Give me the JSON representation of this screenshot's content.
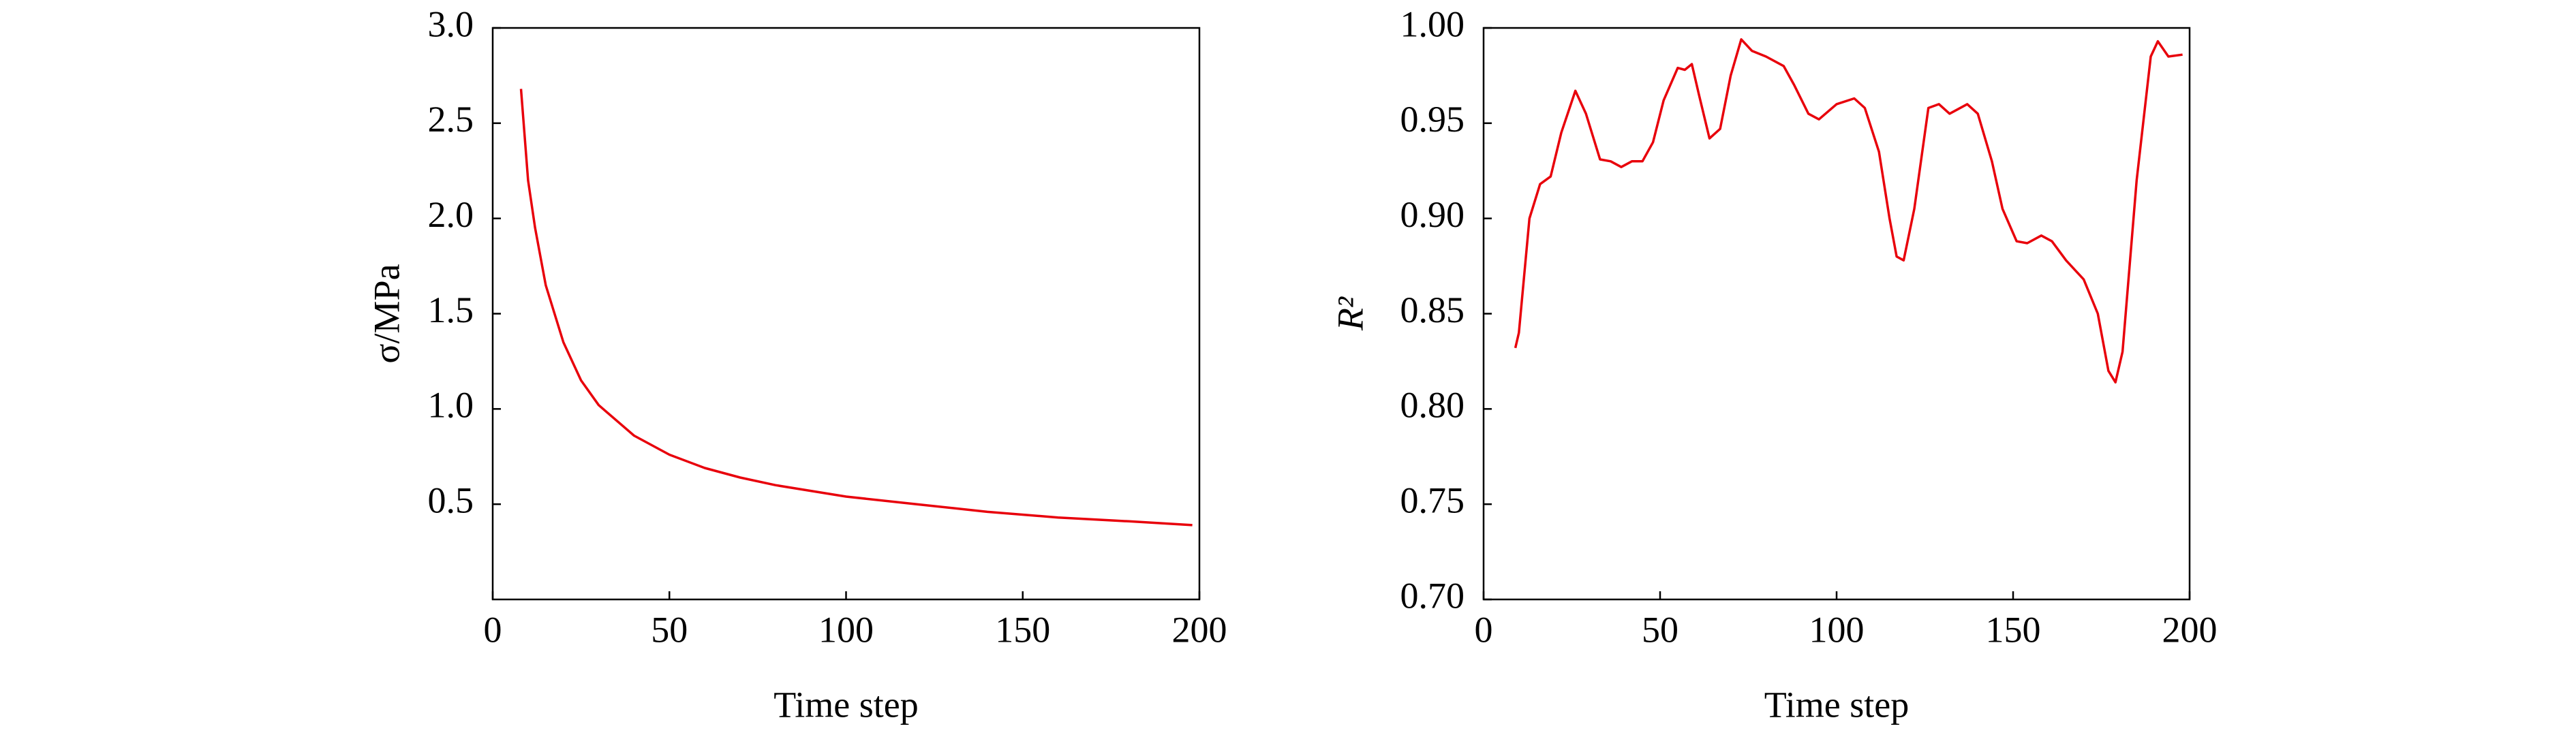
{
  "chart_data": [
    {
      "type": "line",
      "xlabel": "Time step",
      "ylabel": "σ/MPa",
      "xlim": [
        0,
        200
      ],
      "xticks": [
        0,
        50,
        100,
        150,
        200
      ],
      "ylim": [
        0,
        3
      ],
      "yticks": [
        0.5,
        {
          "value": 1,
          "label": "1.0"
        },
        1.5,
        {
          "value": 2,
          "label": "2.0"
        },
        2.5,
        {
          "value": 3,
          "label": "3.0"
        }
      ],
      "series": [
        {
          "color": "#e8000b",
          "x": [
            8,
            10,
            12,
            15,
            20,
            25,
            30,
            40,
            50,
            60,
            70,
            80,
            90,
            100,
            120,
            140,
            160,
            180,
            198
          ],
          "values": [
            2.68,
            2.2,
            1.95,
            1.65,
            1.35,
            1.15,
            1.02,
            0.86,
            0.76,
            0.69,
            0.64,
            0.6,
            0.57,
            0.54,
            0.5,
            0.46,
            0.43,
            0.41,
            0.39
          ]
        }
      ]
    },
    {
      "type": "line",
      "xlabel": "Time step",
      "ylabel": "R²",
      "xlim": [
        0,
        200
      ],
      "xticks": [
        0,
        50,
        100,
        150,
        200
      ],
      "ylim": [
        0.7,
        1
      ],
      "yticks": [
        {
          "value": 0.7,
          "label": "0.70"
        },
        0.75,
        {
          "value": 0.8,
          "label": "0.80"
        },
        0.85,
        {
          "value": 0.9,
          "label": "0.90"
        },
        0.95,
        {
          "value": 1,
          "label": "1.00"
        }
      ],
      "series": [
        {
          "color": "#e8000b",
          "x": [
            9,
            10,
            13,
            16,
            19,
            22,
            26,
            29,
            33,
            36,
            39,
            42,
            45,
            48,
            51,
            55,
            57,
            59,
            61,
            64,
            67,
            70,
            73,
            76,
            80,
            85,
            88,
            92,
            95,
            100,
            105,
            108,
            112,
            115,
            117,
            119,
            122,
            126,
            129,
            132,
            137,
            140,
            144,
            147,
            151,
            154,
            158,
            161,
            165,
            170,
            174,
            177,
            179,
            181,
            185,
            189,
            191,
            194,
            198
          ],
          "values": [
            0.832,
            0.84,
            0.9,
            0.918,
            0.922,
            0.945,
            0.967,
            0.955,
            0.931,
            0.93,
            0.927,
            0.93,
            0.93,
            0.94,
            0.962,
            0.979,
            0.978,
            0.981,
            0.965,
            0.942,
            0.947,
            0.975,
            0.994,
            0.988,
            0.985,
            0.98,
            0.97,
            0.955,
            0.952,
            0.96,
            0.963,
            0.958,
            0.935,
            0.9,
            0.88,
            0.878,
            0.905,
            0.958,
            0.96,
            0.955,
            0.96,
            0.955,
            0.93,
            0.905,
            0.888,
            0.887,
            0.891,
            0.888,
            0.878,
            0.868,
            0.85,
            0.82,
            0.814,
            0.83,
            0.92,
            0.985,
            0.993,
            0.985,
            0.986
          ]
        }
      ]
    }
  ]
}
